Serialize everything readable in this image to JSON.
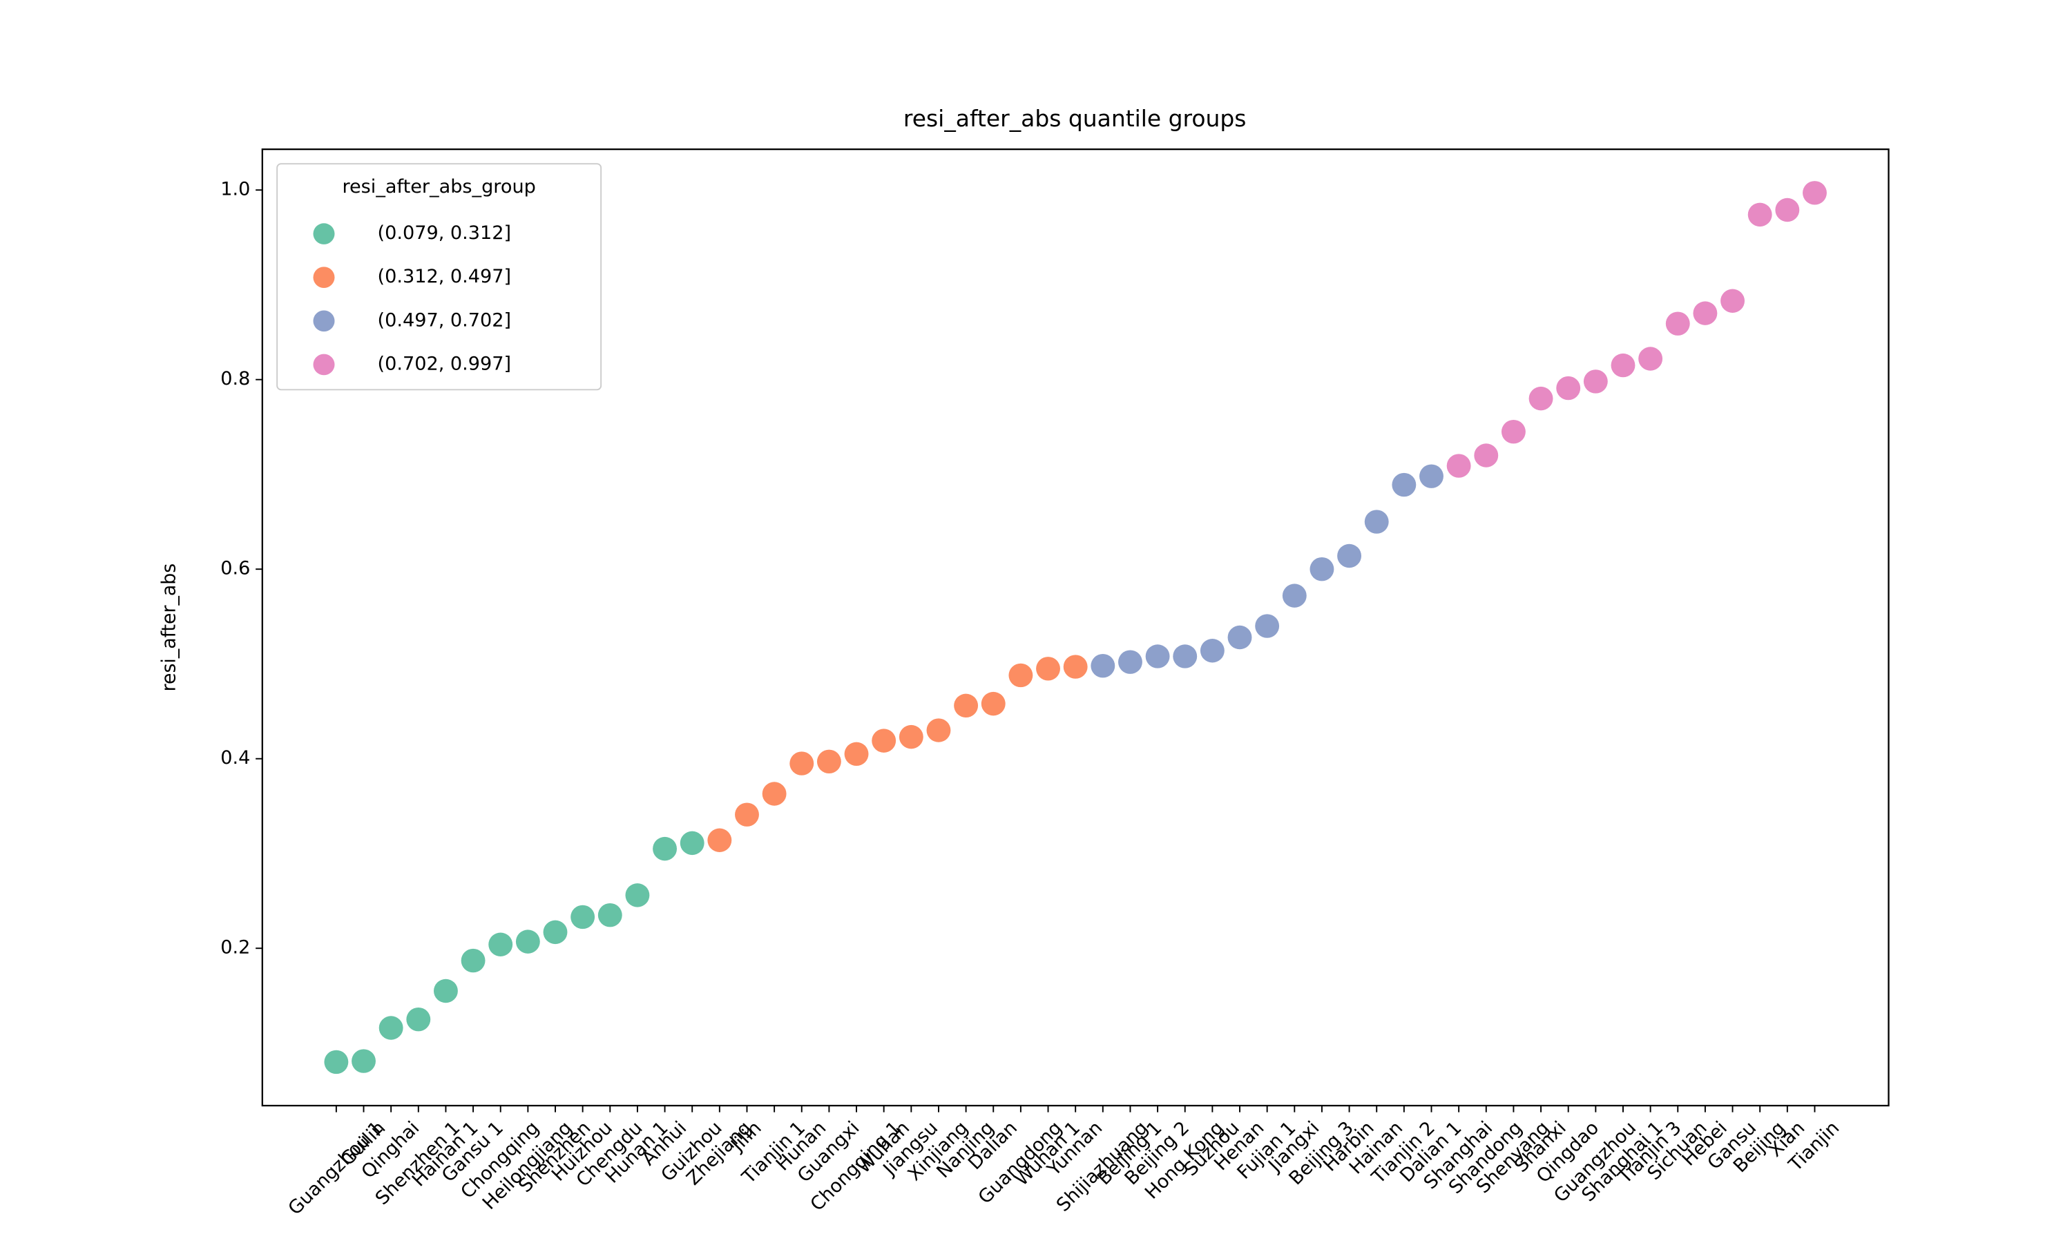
{
  "chart_data": {
    "type": "scatter",
    "title": "resi_after_abs quantile groups",
    "y_label": "resi_after_abs",
    "legend_title": "resi_after_abs_group",
    "legend_position": "upper left",
    "categories": [
      "Guangzhou 1",
      "Guilin",
      "Qinghai",
      "Shenzhen 1",
      "Hainan 1",
      "Gansu 1",
      "Chongqing",
      "Heilongjiang",
      "Shenzhen",
      "Huizhou",
      "Chengdu",
      "Hunan 1",
      "Anhui",
      "Guizhou",
      "Zhejiang",
      "Jilin",
      "Tianjin 1",
      "Hunan",
      "Guangxi",
      "Chongqing 1",
      "Wuhan",
      "Jiangsu",
      "Xinjiang",
      "Nanjing",
      "Dalian",
      "Guangdong",
      "Wuhan 1",
      "Yunnan",
      "Shijiazhuang",
      "Beijing 1",
      "Beijing 2",
      "Hong Kong",
      "Suzhou",
      "Henan",
      "Fujian 1",
      "Jiangxi",
      "Beijing 3",
      "Harbin",
      "Hainan",
      "Tianjin 2",
      "Dalian 1",
      "Shanghai",
      "Shandong",
      "Shenyang",
      "Shanxi",
      "Qingdao",
      "Guangzhou",
      "Shanghai 1",
      "Tianjin 3",
      "Sichuan",
      "Hebei",
      "Gansu",
      "Beijing",
      "Xian",
      "Tianjin"
    ],
    "series": [
      {
        "name": "(0.079, 0.312]",
        "color": "#66c2a5",
        "values": [
          0.08,
          0.081,
          0.116,
          0.125,
          0.155,
          0.187,
          0.204,
          0.207,
          0.217,
          0.233,
          0.235,
          0.256,
          0.305,
          0.311,
          null,
          null,
          null,
          null,
          null,
          null,
          null,
          null,
          null,
          null,
          null,
          null,
          null,
          null,
          null,
          null,
          null,
          null,
          null,
          null,
          null,
          null,
          null,
          null,
          null,
          null,
          null,
          null,
          null,
          null,
          null,
          null,
          null,
          null,
          null,
          null,
          null,
          null,
          null,
          null,
          null
        ]
      },
      {
        "name": "(0.312, 0.497]",
        "color": "#fc8d62",
        "values": [
          null,
          null,
          null,
          null,
          null,
          null,
          null,
          null,
          null,
          null,
          null,
          null,
          null,
          null,
          0.314,
          0.341,
          0.363,
          0.395,
          0.397,
          0.405,
          0.419,
          0.423,
          0.43,
          0.456,
          0.458,
          0.488,
          0.495,
          0.497,
          null,
          null,
          null,
          null,
          null,
          null,
          null,
          null,
          null,
          null,
          null,
          null,
          null,
          null,
          null,
          null,
          null,
          null,
          null,
          null,
          null,
          null,
          null,
          null,
          null,
          null,
          null
        ]
      },
      {
        "name": "(0.497, 0.702]",
        "color": "#8da0cb",
        "values": [
          null,
          null,
          null,
          null,
          null,
          null,
          null,
          null,
          null,
          null,
          null,
          null,
          null,
          null,
          null,
          null,
          null,
          null,
          null,
          null,
          null,
          null,
          null,
          null,
          null,
          null,
          null,
          null,
          0.498,
          0.502,
          0.508,
          0.508,
          0.514,
          0.528,
          0.54,
          0.572,
          0.6,
          0.614,
          0.65,
          0.689,
          0.698,
          null,
          null,
          null,
          null,
          null,
          null,
          null,
          null,
          null,
          null,
          null,
          null,
          null,
          null
        ]
      },
      {
        "name": "(0.702, 0.997]",
        "color": "#e78ac3",
        "values": [
          null,
          null,
          null,
          null,
          null,
          null,
          null,
          null,
          null,
          null,
          null,
          null,
          null,
          null,
          null,
          null,
          null,
          null,
          null,
          null,
          null,
          null,
          null,
          null,
          null,
          null,
          null,
          null,
          null,
          null,
          null,
          null,
          null,
          null,
          null,
          null,
          null,
          null,
          null,
          null,
          null,
          0.709,
          0.72,
          0.745,
          0.78,
          0.791,
          0.798,
          0.815,
          0.822,
          0.859,
          0.87,
          0.883,
          0.974,
          0.979,
          0.997
        ]
      }
    ],
    "ylim": [
      0.034,
      1.043
    ],
    "yticks": [
      0.2,
      0.4,
      0.6,
      0.8,
      {
        "value": 1,
        "label": "1.0"
      }
    ]
  }
}
